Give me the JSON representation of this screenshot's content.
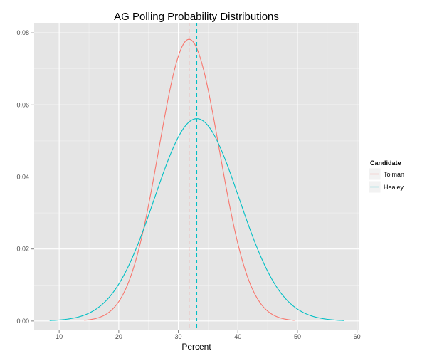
{
  "chart_data": {
    "type": "line",
    "title": "AG Polling Probability Distributions",
    "xlabel": "Percent",
    "ylabel": "",
    "xlim": [
      5.8,
      60.4
    ],
    "ylim": [
      -0.0024,
      0.0828
    ],
    "x_ticks": [
      10,
      20,
      30,
      40,
      50,
      60
    ],
    "x_tick_labels": [
      "10",
      "20",
      "30",
      "40",
      "50",
      "60"
    ],
    "y_ticks": [
      0.0,
      0.02,
      0.04,
      0.06,
      0.08
    ],
    "y_tick_labels": [
      "0.00",
      "0.02",
      "0.04",
      "0.06",
      "0.08"
    ],
    "grid": true,
    "background": "#e5e5e5",
    "legend": {
      "title": "Candidate",
      "placement": "right",
      "entries": [
        {
          "label": "Tolman",
          "color": "#f8766d"
        },
        {
          "label": "Healey",
          "color": "#00bfc4"
        }
      ]
    },
    "series": [
      {
        "name": "Tolman",
        "color": "#f8766d",
        "distribution": "normal",
        "mean": 31.8,
        "sd": 5.1,
        "x_range": [
          14.2,
          49.5
        ],
        "mean_line": 31.8
      },
      {
        "name": "Healey",
        "color": "#00bfc4",
        "distribution": "normal",
        "mean": 33.1,
        "sd": 7.1,
        "x_range": [
          8.4,
          57.8
        ],
        "mean_line": 33.1
      }
    ]
  }
}
